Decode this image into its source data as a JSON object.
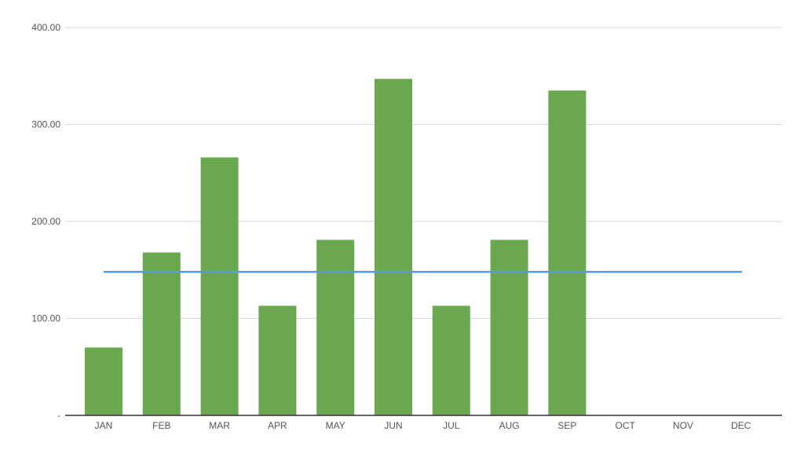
{
  "chart_data": {
    "type": "bar",
    "categories": [
      "JAN",
      "FEB",
      "MAR",
      "APR",
      "MAY",
      "JUN",
      "JUL",
      "AUG",
      "SEP",
      "OCT",
      "NOV",
      "DEC"
    ],
    "series": [
      {
        "type": "bar",
        "color": "#6aa84f",
        "values": [
          70,
          168,
          266,
          113,
          181,
          347,
          113,
          181,
          335,
          null,
          null,
          null
        ]
      },
      {
        "type": "line",
        "color": "#5b9bd5",
        "values": [
          148,
          148,
          148,
          148,
          148,
          148,
          148,
          148,
          148,
          148,
          148,
          148
        ]
      }
    ],
    "yticks": [
      {
        "value": 0,
        "label": "-"
      },
      {
        "value": 100,
        "label": "100.00"
      },
      {
        "value": 200,
        "label": "200.00"
      },
      {
        "value": 300,
        "label": "300.00"
      },
      {
        "value": 400,
        "label": "400.00"
      }
    ],
    "ylim": [
      0,
      400
    ],
    "grid": true,
    "legend": "none"
  }
}
